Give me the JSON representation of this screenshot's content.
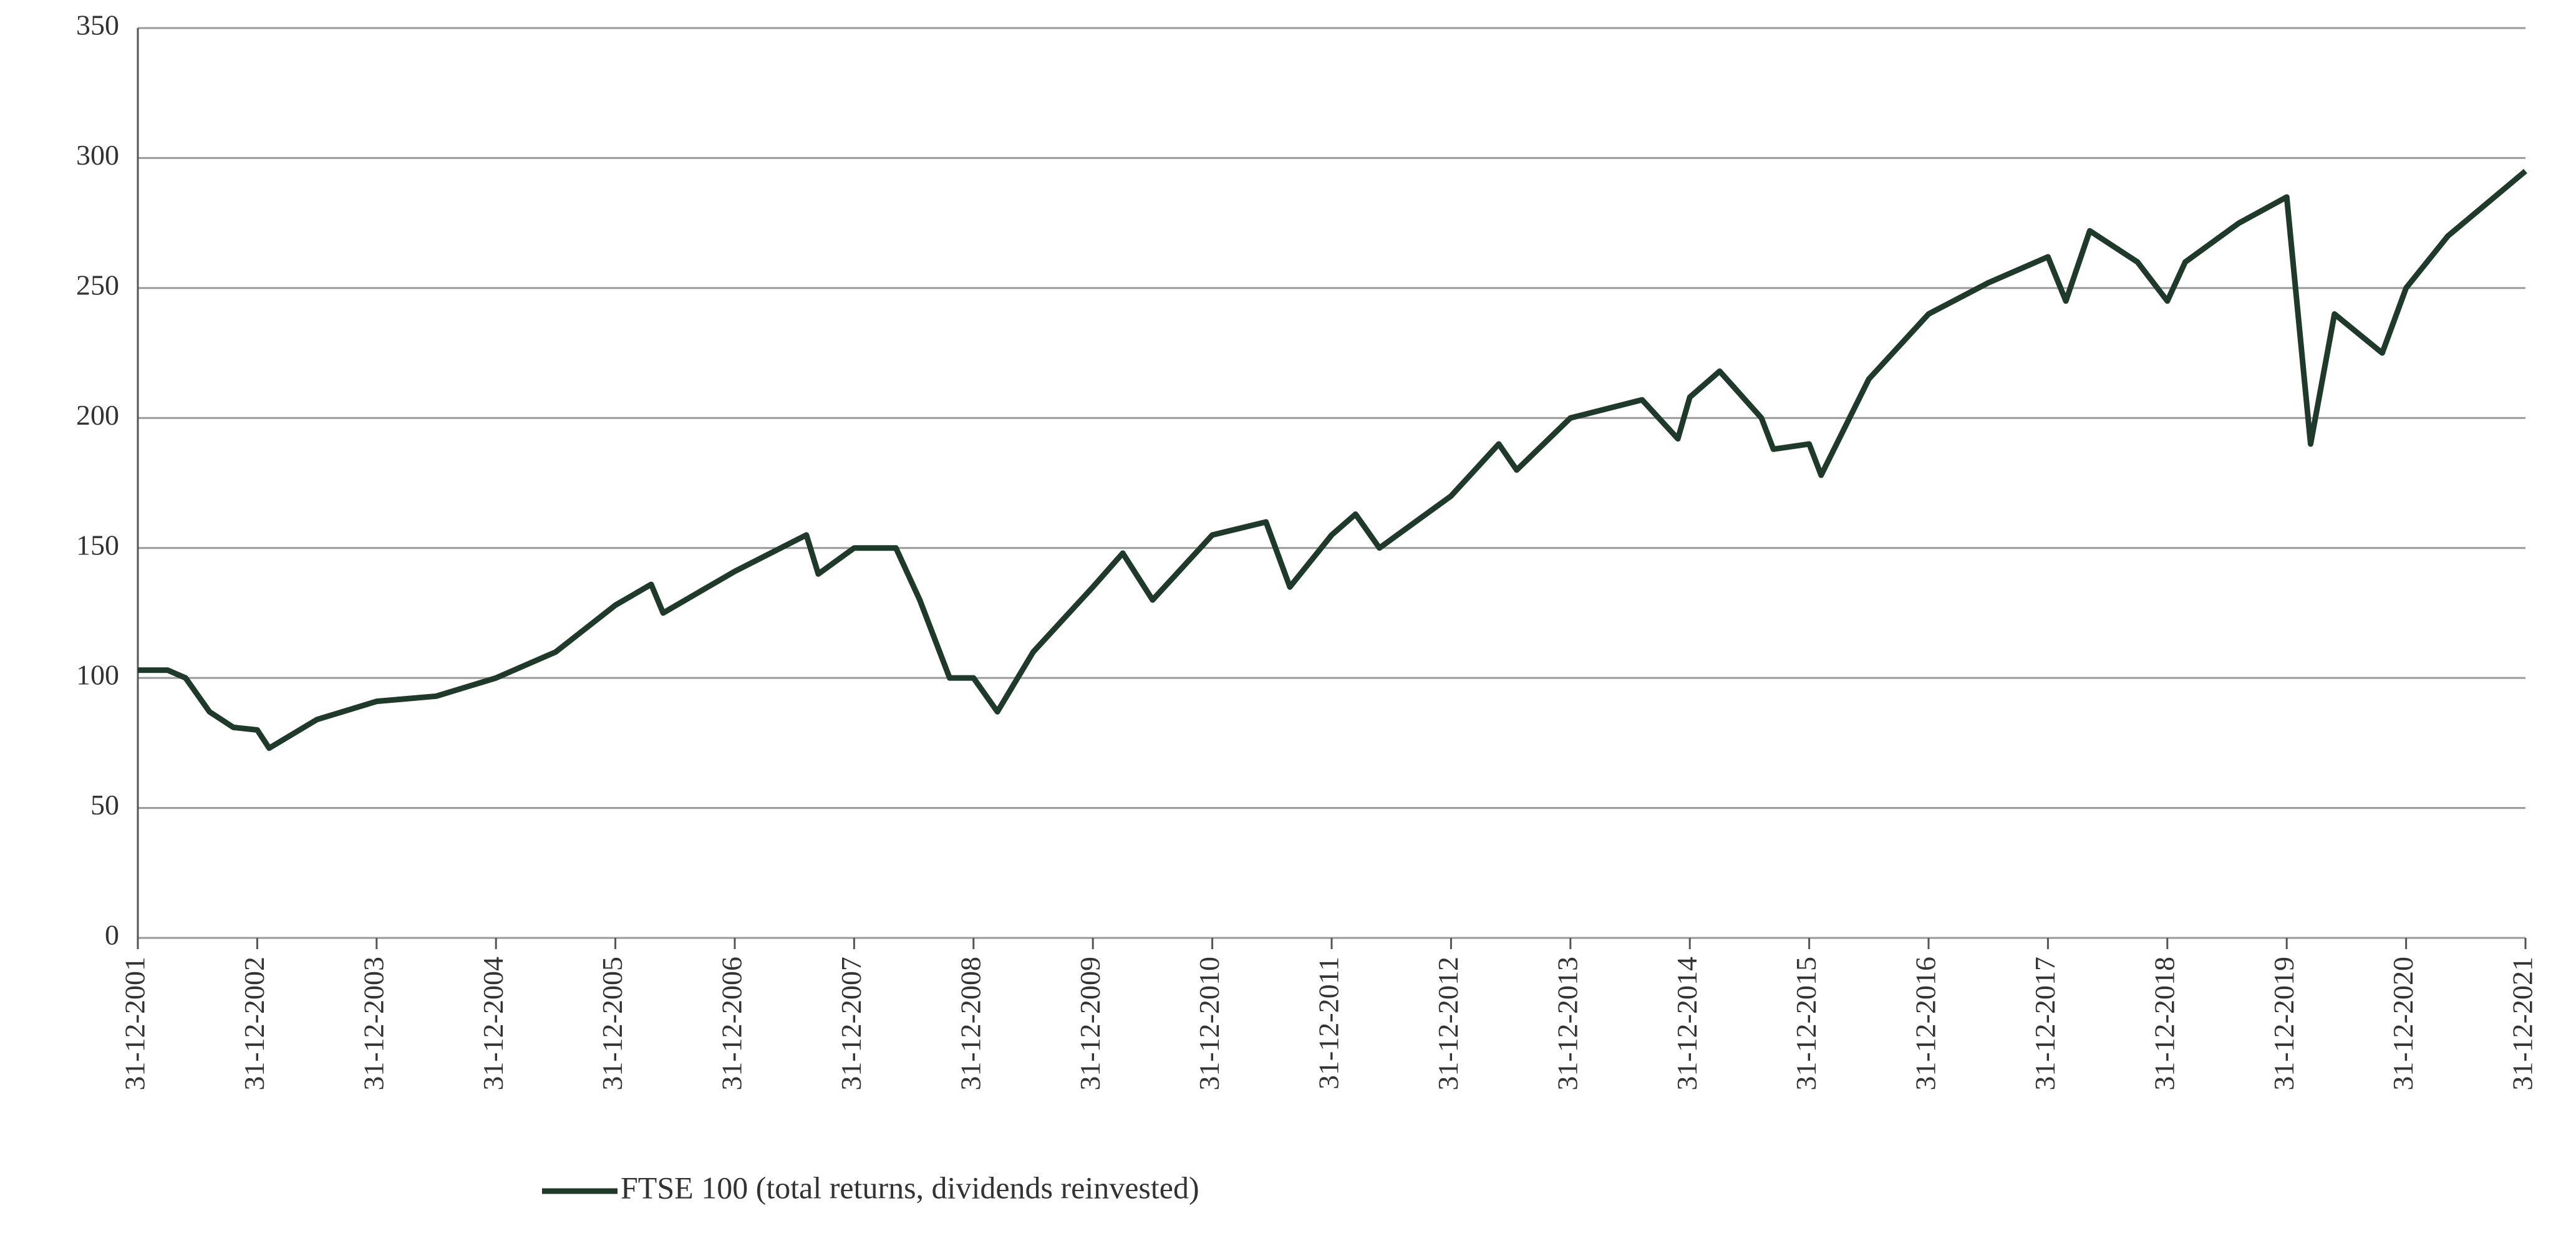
{
  "chart_data": {
    "type": "line",
    "x": [
      2002,
      2002.25,
      2002.4,
      2002.6,
      2002.8,
      2003,
      2003.1,
      2003.5,
      2004,
      2004.5,
      2005,
      2005.5,
      2006,
      2006.3,
      2006.4,
      2007,
      2007.6,
      2007.7,
      2008,
      2008.35,
      2008.55,
      2008.8,
      2009,
      2009.2,
      2009.5,
      2010,
      2010.25,
      2010.5,
      2011,
      2011.45,
      2011.65,
      2012,
      2012.2,
      2012.4,
      2013,
      2013.4,
      2013.55,
      2014,
      2014.6,
      2014.9,
      2015,
      2015.25,
      2015.6,
      2015.7,
      2016,
      2016.1,
      2016.5,
      2017,
      2017.5,
      2018,
      2018.15,
      2018.35,
      2018.75,
      2019,
      2019.15,
      2019.6,
      2020,
      2020.2,
      2020.4,
      2020.8,
      2021,
      2021.35,
      2022
    ],
    "series": [
      {
        "name": "FTSE 100 (total returns, dividends reinvested)",
        "color": "#1f3a2a",
        "values": [
          103,
          103,
          100,
          87,
          81,
          80,
          73,
          84,
          91,
          93,
          100,
          110,
          128,
          136,
          125,
          141,
          155,
          140,
          150,
          150,
          130,
          100,
          100,
          87,
          110,
          135,
          148,
          130,
          155,
          160,
          135,
          155,
          163,
          150,
          170,
          190,
          180,
          200,
          207,
          192,
          208,
          218,
          200,
          188,
          190,
          178,
          215,
          240,
          252,
          262,
          245,
          272,
          260,
          245,
          260,
          275,
          285,
          190,
          240,
          225,
          250,
          270,
          295
        ]
      }
    ],
    "xlim": [
      2002,
      2022
    ],
    "xticks": [
      {
        "value": 2002,
        "label": "31-12-2001"
      },
      {
        "value": 2003,
        "label": "31-12-2002"
      },
      {
        "value": 2004,
        "label": "31-12-2003"
      },
      {
        "value": 2005,
        "label": "31-12-2004"
      },
      {
        "value": 2006,
        "label": "31-12-2005"
      },
      {
        "value": 2007,
        "label": "31-12-2006"
      },
      {
        "value": 2008,
        "label": "31-12-2007"
      },
      {
        "value": 2009,
        "label": "31-12-2008"
      },
      {
        "value": 2010,
        "label": "31-12-2009"
      },
      {
        "value": 2011,
        "label": "31-12-2010"
      },
      {
        "value": 2012,
        "label": "31-12-2011"
      },
      {
        "value": 2013,
        "label": "31-12-2012"
      },
      {
        "value": 2014,
        "label": "31-12-2013"
      },
      {
        "value": 2015,
        "label": "31-12-2014"
      },
      {
        "value": 2016,
        "label": "31-12-2015"
      },
      {
        "value": 2017,
        "label": "31-12-2016"
      },
      {
        "value": 2018,
        "label": "31-12-2017"
      },
      {
        "value": 2019,
        "label": "31-12-2018"
      },
      {
        "value": 2020,
        "label": "31-12-2019"
      },
      {
        "value": 2021,
        "label": "31-12-2020"
      },
      {
        "value": 2022,
        "label": "31-12-2021"
      }
    ],
    "ylim": [
      0,
      350
    ],
    "yticks": [
      0,
      50,
      100,
      150,
      200,
      250,
      300,
      350
    ],
    "grid": true
  }
}
